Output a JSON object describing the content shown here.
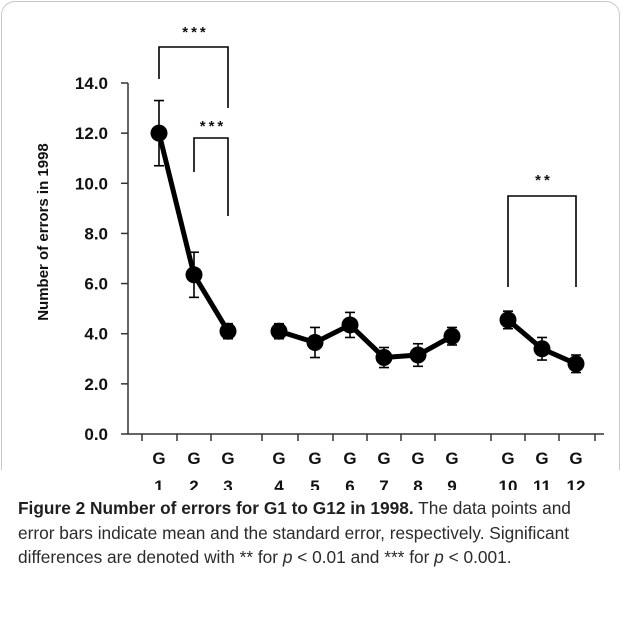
{
  "chart_data": {
    "type": "line",
    "ylabel": "Number of errors in 1998",
    "ylim": [
      0,
      14
    ],
    "yticks": [
      "0.0",
      "2.0",
      "4.0",
      "6.0",
      "8.0",
      "10.0",
      "12.0",
      "14.0"
    ],
    "grid": false,
    "segments": [
      {
        "categories": [
          {
            "top": "G",
            "bottom": "1"
          },
          {
            "top": "G",
            "bottom": "2"
          },
          {
            "top": "G",
            "bottom": "3"
          }
        ],
        "values": [
          12.0,
          6.35,
          4.1
        ],
        "errors": [
          1.3,
          0.9,
          0.3
        ]
      },
      {
        "categories": [
          {
            "top": "G",
            "bottom": "4"
          },
          {
            "top": "G",
            "bottom": "5"
          },
          {
            "top": "G",
            "bottom": "6"
          },
          {
            "top": "G",
            "bottom": "7"
          },
          {
            "top": "G",
            "bottom": "8"
          },
          {
            "top": "G",
            "bottom": "9"
          }
        ],
        "values": [
          4.1,
          3.65,
          4.35,
          3.05,
          3.15,
          3.9
        ],
        "errors": [
          0.3,
          0.6,
          0.5,
          0.4,
          0.45,
          0.35
        ]
      },
      {
        "categories": [
          {
            "top": "G",
            "bottom": "10"
          },
          {
            "top": "G",
            "bottom": "11"
          },
          {
            "top": "G",
            "bottom": "12"
          }
        ],
        "values": [
          4.55,
          3.4,
          2.8
        ],
        "errors": [
          0.35,
          0.45,
          0.35
        ]
      }
    ],
    "significance": [
      {
        "from": "G1",
        "to": "G3",
        "label": "***"
      },
      {
        "from": "G2",
        "to": "G3",
        "label": "***"
      },
      {
        "from": "G10",
        "to": "G12",
        "label": "**"
      }
    ],
    "colors": {
      "series": "#000000",
      "text": "#111111"
    }
  },
  "caption": {
    "title": "Figure 2 Number of errors for G1 to G12 in 1998.",
    "text_1": "The data points and error bars indicate mean and the standard error, respectively. Significant differences are denoted with ** for ",
    "p": "p",
    "text_2": " < 0.01 and *** for ",
    "text_3": " < 0.001."
  }
}
